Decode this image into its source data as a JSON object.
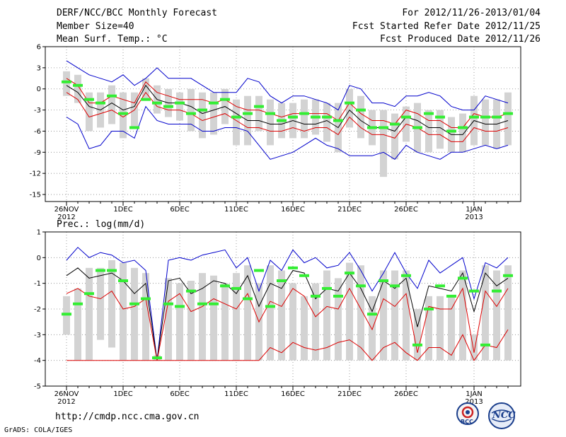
{
  "header": {
    "title": "DERF/NCC/BCC Monthly Forecast",
    "member_size": "Member Size=40",
    "variable": "Mean Surf. Temp.: °C",
    "for_range": "For 2012/11/26-2013/01/04",
    "started": "Fcst Started Refer Date 2012/11/25",
    "produced": "Fcst Produced Date 2012/11/26"
  },
  "footer": {
    "url": "http://cmdp.ncc.cma.gov.cn",
    "credit": "GrADS: COLA/IGES",
    "logo1": "BCC",
    "logo2": "NCC"
  },
  "colors": {
    "max_min": "#0000cc",
    "spread": "#dd0000",
    "mean": "#000000",
    "median": "#33ee33",
    "box": "#d3d3d3"
  },
  "chart_data": [
    {
      "type": "line",
      "title": "Mean Surf. Temp.: °C",
      "ylim": [
        -16,
        6
      ],
      "yticks": [
        6,
        3,
        0,
        -3,
        -6,
        -9,
        -12,
        -15
      ],
      "xticks": [
        {
          "day": 0,
          "label": "26NOV",
          "year": "2012"
        },
        {
          "day": 5,
          "label": "1DEC"
        },
        {
          "day": 10,
          "label": "6DEC"
        },
        {
          "day": 15,
          "label": "11DEC"
        },
        {
          "day": 20,
          "label": "16DEC"
        },
        {
          "day": 25,
          "label": "21DEC"
        },
        {
          "day": 30,
          "label": "26DEC"
        },
        {
          "day": 36,
          "label": "1JAN",
          "year": "2013"
        }
      ],
      "days": 40,
      "series": [
        {
          "name": "max",
          "values": [
            4,
            3,
            2,
            1.5,
            1,
            2,
            0.5,
            1.5,
            3,
            1.5,
            1.5,
            1.5,
            0.5,
            -0.5,
            -0.5,
            -0.5,
            1.5,
            1,
            -1,
            -2,
            -1,
            -1,
            -1.5,
            -2,
            -3,
            0.5,
            0,
            -2,
            -2,
            -2.5,
            -1,
            -1,
            -0.5,
            -1,
            -2.5,
            -3,
            -3,
            -1,
            -1.5,
            -2
          ]
        },
        {
          "name": "min",
          "values": [
            -4,
            -5,
            -8.5,
            -8,
            -6,
            -6,
            -7,
            -2.5,
            -4.5,
            -5,
            -5,
            -5,
            -6,
            -6,
            -5.5,
            -5.5,
            -6,
            -8,
            -10,
            -9.5,
            -9,
            -8,
            -7,
            -8,
            -8.5,
            -9.5,
            -9.5,
            -9.5,
            -9,
            -10,
            -8,
            -9,
            -9.5,
            -10,
            -9,
            -9,
            -8.5,
            -8,
            -8.5,
            -8
          ]
        },
        {
          "name": "upper_spread",
          "values": [
            1.5,
            0.5,
            -2,
            -2,
            -1,
            -1.5,
            -2,
            1,
            -0.5,
            -1,
            -1.5,
            -1.5,
            -1.5,
            -2,
            -1.5,
            -2.5,
            -3,
            -3,
            -3.5,
            -4,
            -3.5,
            -3.5,
            -3.5,
            -3.5,
            -4.5,
            -2,
            -3.5,
            -4.5,
            -4.5,
            -5,
            -3,
            -3.5,
            -4.5,
            -4.5,
            -5.5,
            -5.5,
            -3.5,
            -4,
            -4,
            -3.5
          ]
        },
        {
          "name": "mean",
          "values": [
            0.5,
            -0.5,
            -2.5,
            -3,
            -2,
            -3,
            -2.5,
            0.5,
            -1.5,
            -2,
            -2,
            -2.5,
            -3.5,
            -3,
            -2.5,
            -3.5,
            -4.5,
            -4.5,
            -5,
            -5,
            -4.5,
            -5,
            -5,
            -4.5,
            -5.5,
            -3,
            -4.5,
            -5.5,
            -5.5,
            -6,
            -4,
            -4.5,
            -5.5,
            -5.5,
            -6.5,
            -6.5,
            -4.5,
            -5,
            -5,
            -4.5
          ]
        },
        {
          "name": "lower_spread",
          "values": [
            -0.5,
            -1.5,
            -4,
            -3.5,
            -3,
            -4,
            -3,
            -0.5,
            -2.5,
            -3,
            -3,
            -3.5,
            -4.5,
            -4,
            -3.5,
            -4.5,
            -5.5,
            -5.5,
            -6,
            -6,
            -5.5,
            -6,
            -5.5,
            -5.5,
            -6.5,
            -4,
            -5.5,
            -6.5,
            -6.5,
            -7,
            -5,
            -5.5,
            -6.5,
            -6.5,
            -7.5,
            -7.5,
            -5.5,
            -6,
            -6,
            -5.5
          ]
        }
      ],
      "box_high": [
        2.5,
        2,
        -0.5,
        -0.5,
        0.5,
        -0.5,
        -0.5,
        1.5,
        0.5,
        0,
        -0.5,
        0,
        -0.5,
        -0.5,
        0,
        -1.5,
        -1,
        -1,
        -1.5,
        -2,
        -2,
        -1.5,
        -1.5,
        -2,
        -2,
        0,
        -1,
        -3,
        -3,
        -3.5,
        -2.5,
        -2,
        -3,
        -3,
        -4,
        -3.5,
        -1,
        -1.5,
        -1.5,
        -0.5
      ],
      "box_low": [
        -1,
        -2,
        -6,
        -5.5,
        -5,
        -7,
        -5.5,
        -1.5,
        -3.5,
        -4,
        -4.5,
        -6,
        -7,
        -6.5,
        -5,
        -8,
        -8,
        -6,
        -8,
        -7,
        -7,
        -7,
        -6.5,
        -7.5,
        -9,
        -5.5,
        -7,
        -8,
        -12.5,
        -10,
        -7.5,
        -9,
        -9,
        -8.5,
        -9,
        -9,
        -8,
        -8,
        -8.5,
        -8
      ],
      "medians": [
        1,
        0.5,
        -1.5,
        -2,
        -1,
        -3.5,
        -5.5,
        -1.5,
        -2,
        -2.5,
        -2,
        -3.5,
        -3,
        -2,
        -1.5,
        -4,
        -3.5,
        -2.5,
        -3.5,
        -4.5,
        -4,
        -3.5,
        -4,
        -4,
        -4.5,
        -2,
        -3,
        -5.5,
        -5.5,
        -5,
        -4,
        -5.5,
        -3.5,
        -4,
        -6,
        -5.5,
        -4,
        -4,
        -4,
        -3.5
      ]
    },
    {
      "type": "line",
      "title": "Prec.: log(mm/d)",
      "ylim": [
        -5,
        1
      ],
      "yticks": [
        1,
        0,
        -1,
        -2,
        -3,
        -4,
        -5
      ],
      "xticks": [
        {
          "day": 0,
          "label": "26NOV",
          "year": "2012"
        },
        {
          "day": 5,
          "label": "1DEC"
        },
        {
          "day": 10,
          "label": "6DEC"
        },
        {
          "day": 15,
          "label": "11DEC"
        },
        {
          "day": 20,
          "label": "16DEC"
        },
        {
          "day": 25,
          "label": "21DEC"
        },
        {
          "day": 30,
          "label": "26DEC"
        },
        {
          "day": 36,
          "label": "1JAN",
          "year": "2013"
        }
      ],
      "days": 40,
      "series": [
        {
          "name": "max",
          "values": [
            -0.1,
            0.4,
            0,
            0.2,
            0.1,
            -0.2,
            -0.1,
            -0.5,
            -4,
            -0.1,
            0,
            -0.1,
            0.1,
            0.2,
            0.3,
            -0.4,
            0,
            -1.3,
            -0.1,
            -0.5,
            0.3,
            -0.2,
            0,
            -0.4,
            -0.3,
            0.2,
            -0.5,
            -1.3,
            -0.6,
            0.2,
            -0.6,
            -1.2,
            -0.1,
            -0.6,
            -0.3,
            0,
            -1.6,
            -0.2,
            -0.4,
            0
          ]
        },
        {
          "name": "mean",
          "values": [
            -0.7,
            -0.4,
            -0.8,
            -0.7,
            -0.6,
            -0.9,
            -1.4,
            -1,
            -4,
            -0.9,
            -0.8,
            -1.4,
            -1.2,
            -0.9,
            -1,
            -1.4,
            -0.7,
            -1.9,
            -1,
            -1.2,
            -0.5,
            -0.6,
            -1.6,
            -1.2,
            -1.3,
            -0.6,
            -1.2,
            -2.1,
            -0.9,
            -1.2,
            -0.8,
            -2.7,
            -1.1,
            -1.2,
            -1.3,
            -0.6,
            -2.1,
            -0.6,
            -1.1,
            -0.8
          ]
        },
        {
          "name": "upper_spread",
          "values": [
            -1.4,
            -1.2,
            -1.5,
            -1.6,
            -1.3,
            -2,
            -1.9,
            -1.6,
            -4,
            -1.7,
            -1.4,
            -2.1,
            -1.9,
            -1.6,
            -1.8,
            -2,
            -1.4,
            -2.5,
            -1.7,
            -1.9,
            -1.2,
            -1.5,
            -2.3,
            -1.9,
            -2,
            -1.2,
            -2,
            -2.8,
            -1.6,
            -1.9,
            -1.4,
            -3.7,
            -1.9,
            -2,
            -2,
            -1.2,
            -3.7,
            -1.3,
            -1.9,
            -1.2
          ]
        },
        {
          "name": "lower_spread",
          "values": [
            -4,
            -4,
            -4,
            -4,
            -4,
            -4,
            -4,
            -4,
            -4,
            -4,
            -4,
            -4,
            -4,
            -4,
            -4,
            -4,
            -4,
            -4,
            -3.5,
            -3.7,
            -3.3,
            -3.5,
            -3.6,
            -3.5,
            -3.3,
            -3.2,
            -3.5,
            -4,
            -3.5,
            -3.3,
            -3.7,
            -4,
            -3.5,
            -3.5,
            -3.8,
            -3,
            -4,
            -3.4,
            -3.5,
            -2.8
          ]
        }
      ],
      "box_high": [
        -1.5,
        -1.2,
        -0.4,
        -0.4,
        -0.1,
        -0.2,
        -0.4,
        -0.6,
        -3.8,
        -0.8,
        -1,
        -0.9,
        -0.6,
        -0.7,
        -1,
        -0.6,
        -0.3,
        -1,
        -0.3,
        -0.5,
        -1,
        -1.5,
        -1,
        -0.5,
        -0.8,
        -0.2,
        -0.3,
        -1.5,
        -0.5,
        -0.5,
        -0.5,
        -2,
        -1.5,
        -1.5,
        -1.5,
        -0.5,
        -3,
        -0.3,
        -0.5,
        -0.3
      ],
      "box_low": [
        -3,
        -4,
        -4,
        -3.2,
        -3.5,
        -4,
        -4,
        -4,
        -4,
        -4,
        -4,
        -4,
        -4,
        -4,
        -4,
        -4,
        -4,
        -4,
        -4,
        -4,
        -4,
        -4,
        -4,
        -4,
        -4,
        -4,
        -4,
        -4,
        -4,
        -4,
        -4,
        -4,
        -4,
        -4,
        -4,
        -4,
        -4,
        -4,
        -4,
        -4
      ],
      "medians": [
        -2.2,
        -1.8,
        -1.4,
        -0.5,
        -0.5,
        -0.9,
        -1.8,
        -1.6,
        -3.9,
        -1.8,
        -1.9,
        -1.3,
        -1.8,
        -1.8,
        -1.1,
        -1.2,
        -1.6,
        -0.5,
        -1.9,
        -0.9,
        -0.4,
        -0.7,
        -1.5,
        -1.2,
        -1.5,
        -0.6,
        -1.1,
        -2.2,
        -0.9,
        -1.1,
        -0.7,
        -3.4,
        -2,
        -1.1,
        -1.5,
        -0.8,
        -1.3,
        -3.4,
        -1.3,
        -0.7
      ]
    }
  ]
}
